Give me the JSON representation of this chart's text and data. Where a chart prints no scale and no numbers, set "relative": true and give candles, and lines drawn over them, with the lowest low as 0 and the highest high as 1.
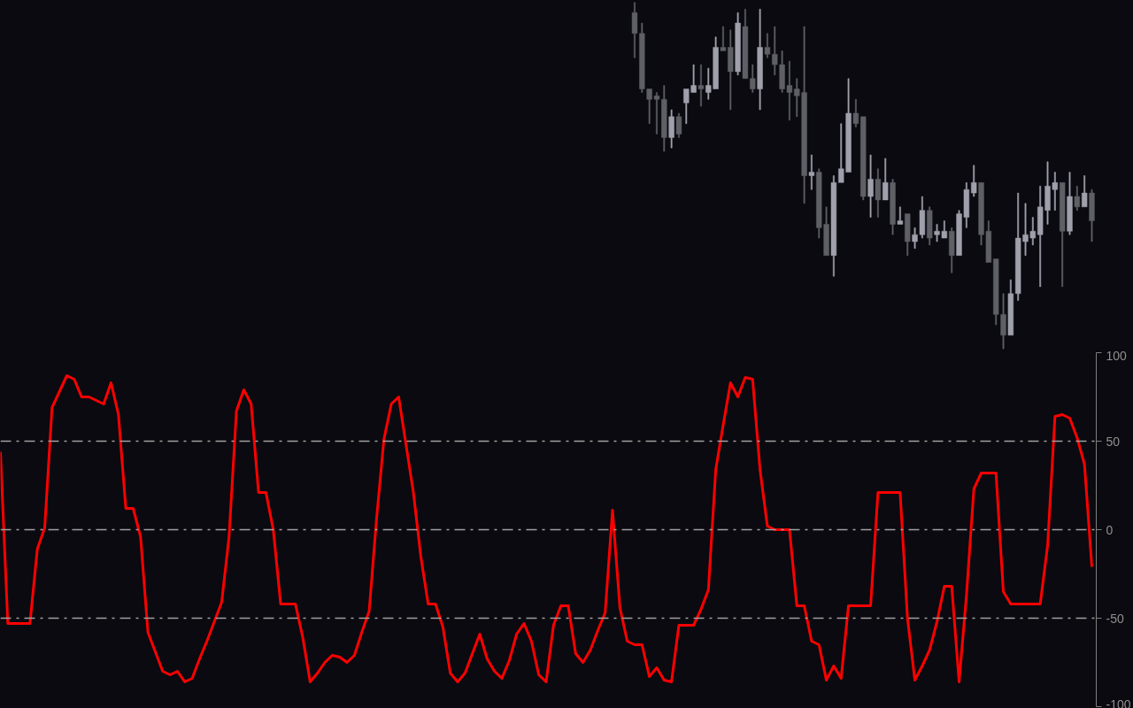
{
  "chart_data": [
    {
      "type": "candlestick",
      "relative": true,
      "tick_labels": false,
      "categories": [
        null,
        null,
        null,
        null,
        null,
        null,
        null,
        null,
        null,
        null,
        null,
        null,
        null,
        null,
        null,
        null,
        null,
        null,
        null,
        null,
        null,
        null,
        null,
        null,
        null,
        null,
        null,
        null,
        null,
        null,
        null,
        null,
        null,
        null,
        null,
        null,
        null,
        null,
        null,
        null,
        null,
        null,
        null,
        null,
        null,
        null,
        null,
        null,
        null,
        null,
        null,
        null,
        null,
        null,
        null,
        null,
        null,
        null,
        null,
        null,
        null,
        null,
        null
      ],
      "ohlc": [
        [
          0.97,
          1.0,
          0.84,
          0.91
        ],
        [
          0.91,
          0.94,
          0.74,
          0.75
        ],
        [
          0.75,
          0.75,
          0.65,
          0.72
        ],
        [
          0.73,
          0.74,
          0.62,
          0.72
        ],
        [
          0.72,
          0.76,
          0.57,
          0.61
        ],
        [
          0.61,
          0.69,
          0.58,
          0.67
        ],
        [
          0.67,
          0.68,
          0.61,
          0.62
        ],
        [
          0.71,
          0.75,
          0.65,
          0.75
        ],
        [
          0.74,
          0.82,
          0.74,
          0.76
        ],
        [
          0.76,
          0.82,
          0.7,
          0.75
        ],
        [
          0.74,
          0.81,
          0.72,
          0.76
        ],
        [
          0.75,
          0.9,
          0.75,
          0.87
        ],
        [
          0.87,
          0.93,
          0.86,
          0.86
        ],
        [
          0.87,
          0.92,
          0.69,
          0.8
        ],
        [
          0.8,
          0.97,
          0.79,
          0.94
        ],
        [
          0.93,
          0.98,
          0.78,
          0.78
        ],
        [
          0.78,
          0.82,
          0.74,
          0.75
        ],
        [
          0.75,
          0.98,
          0.69,
          0.87
        ],
        [
          0.87,
          0.91,
          0.84,
          0.85
        ],
        [
          0.85,
          0.93,
          0.79,
          0.82
        ],
        [
          0.82,
          0.86,
          0.74,
          0.75
        ],
        [
          0.76,
          0.83,
          0.66,
          0.74
        ],
        [
          0.75,
          0.78,
          0.67,
          0.73
        ],
        [
          0.74,
          0.93,
          0.42,
          0.5
        ],
        [
          0.5,
          0.56,
          0.46,
          0.51
        ],
        [
          0.51,
          0.52,
          0.32,
          0.35
        ],
        [
          0.36,
          0.41,
          0.27,
          0.27
        ],
        [
          0.27,
          0.5,
          0.21,
          0.48
        ],
        [
          0.48,
          0.65,
          0.48,
          0.52
        ],
        [
          0.51,
          0.78,
          0.51,
          0.68
        ],
        [
          0.68,
          0.72,
          0.64,
          0.65
        ],
        [
          0.67,
          0.67,
          0.43,
          0.44
        ],
        [
          0.44,
          0.56,
          0.38,
          0.49
        ],
        [
          0.49,
          0.52,
          0.38,
          0.43
        ],
        [
          0.43,
          0.55,
          0.43,
          0.48
        ],
        [
          0.48,
          0.49,
          0.33,
          0.36
        ],
        [
          0.36,
          0.41,
          0.36,
          0.37
        ],
        [
          0.39,
          0.39,
          0.27,
          0.31
        ],
        [
          0.31,
          0.35,
          0.29,
          0.33
        ],
        [
          0.33,
          0.44,
          0.32,
          0.4
        ],
        [
          0.4,
          0.41,
          0.3,
          0.32
        ],
        [
          0.33,
          0.36,
          0.31,
          0.34
        ],
        [
          0.32,
          0.37,
          0.32,
          0.34
        ],
        [
          0.34,
          0.35,
          0.22,
          0.27
        ],
        [
          0.27,
          0.4,
          0.27,
          0.39
        ],
        [
          0.38,
          0.48,
          0.35,
          0.46
        ],
        [
          0.45,
          0.53,
          0.44,
          0.48
        ],
        [
          0.48,
          0.48,
          0.3,
          0.33
        ],
        [
          0.34,
          0.37,
          0.25,
          0.25
        ],
        [
          0.26,
          0.26,
          0.07,
          0.1
        ],
        [
          0.1,
          0.16,
          0.0,
          0.04
        ],
        [
          0.04,
          0.2,
          0.04,
          0.16
        ],
        [
          0.16,
          0.45,
          0.14,
          0.32
        ],
        [
          0.31,
          0.42,
          0.27,
          0.33
        ],
        [
          0.32,
          0.38,
          0.3,
          0.34
        ],
        [
          0.33,
          0.47,
          0.18,
          0.41
        ],
        [
          0.4,
          0.54,
          0.36,
          0.47
        ],
        [
          0.46,
          0.51,
          0.4,
          0.48
        ],
        [
          0.48,
          0.48,
          0.18,
          0.34
        ],
        [
          0.34,
          0.51,
          0.33,
          0.44
        ],
        [
          0.44,
          0.47,
          0.4,
          0.41
        ],
        [
          0.41,
          0.5,
          0.41,
          0.45
        ],
        [
          0.45,
          0.46,
          0.31,
          0.37
        ]
      ],
      "colors": [
        "#5f5f66",
        "#5f5f66",
        "#5f5f66",
        "#5f5f66",
        "#5f5f66",
        "#a0a0ac",
        "#5f5f66",
        "#a0a0ac",
        "#a0a0ac",
        "#5f5f66",
        "#a0a0ac",
        "#a0a0ac",
        "#5f5f66",
        "#5f5f66",
        "#a0a0ac",
        "#5f5f66",
        "#5f5f66",
        "#a0a0ac",
        "#5f5f66",
        "#5f5f66",
        "#5f5f66",
        "#5f5f66",
        "#5f5f66",
        "#5f5f66",
        "#a0a0ac",
        "#5f5f66",
        "#5f5f66",
        "#a0a0ac",
        "#a0a0ac",
        "#a0a0ac",
        "#5f5f66",
        "#5f5f66",
        "#a0a0ac",
        "#5f5f66",
        "#a0a0ac",
        "#5f5f66",
        "#a0a0ac",
        "#5f5f66",
        "#a0a0ac",
        "#a0a0ac",
        "#5f5f66",
        "#a0a0ac",
        "#a0a0ac",
        "#5f5f66",
        "#a0a0ac",
        "#a0a0ac",
        "#a0a0ac",
        "#5f5f66",
        "#5f5f66",
        "#5f5f66",
        "#5f5f66",
        "#a0a0ac",
        "#a0a0ac",
        "#a0a0ac",
        "#a0a0ac",
        "#a0a0ac",
        "#a0a0ac",
        "#a0a0ac",
        "#5f5f66",
        "#a0a0ac",
        "#5f5f66",
        "#a0a0ac",
        "#5f5f66"
      ]
    },
    {
      "type": "line",
      "tick_labels": "y",
      "ylim": [
        -100,
        100
      ],
      "yticks": [
        100,
        50,
        0,
        -50,
        -100
      ],
      "categories": [
        null,
        null,
        null,
        null,
        null,
        null,
        null,
        null,
        null,
        null,
        null,
        null,
        null,
        null,
        null,
        null,
        null,
        null,
        null,
        null,
        null,
        null,
        null,
        null,
        null,
        null,
        null,
        null,
        null,
        null,
        null,
        null,
        null,
        null,
        null,
        null,
        null,
        null,
        null,
        null,
        null,
        null,
        null,
        null,
        null,
        null,
        null,
        null,
        null,
        null,
        null,
        null,
        null,
        null,
        null,
        null,
        null,
        null,
        null,
        null,
        null,
        null,
        null,
        null,
        null,
        null,
        null,
        null,
        null,
        null,
        null,
        null,
        null,
        null,
        null,
        null,
        null,
        null,
        null,
        null,
        null,
        null,
        null,
        null,
        null,
        null,
        null,
        null,
        null,
        null,
        null,
        null,
        null,
        null,
        null,
        null,
        null,
        null,
        null,
        null,
        null,
        null,
        null,
        null,
        null,
        null,
        null,
        null,
        null,
        null,
        null,
        null,
        null,
        null,
        null,
        null,
        null,
        null,
        null,
        null,
        null,
        null,
        null,
        null,
        null,
        null,
        null,
        null,
        null,
        null,
        null,
        null,
        null,
        null,
        null,
        null,
        null,
        null,
        null,
        null,
        null,
        null,
        null,
        null,
        null,
        null,
        null,
        null,
        null
      ],
      "ref_lines": [
        {
          "axis": "y",
          "value": 50,
          "color": "#a0a0a0",
          "line_style": "dashdot"
        },
        {
          "axis": "y",
          "value": 0,
          "color": "#a0a0a0",
          "line_style": "dashdot"
        },
        {
          "axis": "y",
          "value": -50,
          "color": "#a0a0a0",
          "line_style": "dashdot"
        }
      ],
      "series": [
        {
          "color": "#ff0000",
          "values": [
            44,
            -53,
            -53,
            -53,
            -53,
            -11,
            1,
            69,
            78,
            87,
            85,
            75,
            75,
            73,
            71,
            83,
            65,
            12,
            12,
            -4,
            -58,
            -69,
            -80,
            -82,
            -80,
            -86,
            -84,
            -73,
            -63,
            -52,
            -41,
            -4,
            67,
            79,
            71,
            21,
            21,
            0,
            -42,
            -42,
            -42,
            -61,
            -86,
            -81,
            -75,
            -71,
            -72,
            -75,
            -71,
            -58,
            -46,
            6,
            51,
            71,
            75,
            48,
            21,
            -15,
            -42,
            -42,
            -55,
            -81,
            -86,
            -81,
            -70,
            -59,
            -73,
            -80,
            -84,
            -74,
            -59,
            -53,
            -63,
            -82,
            -86,
            -54,
            -43,
            -43,
            -70,
            -75,
            -68,
            -57,
            -47,
            11,
            -44,
            -63,
            -65,
            -65,
            -83,
            -78,
            -85,
            -86,
            -54,
            -54,
            -54,
            -45,
            -34,
            34,
            59,
            83,
            75,
            86,
            85,
            34,
            2,
            0,
            0,
            0,
            -43,
            -43,
            -63,
            -65,
            -85,
            -77,
            -84,
            -43,
            -43,
            -43,
            -43,
            21,
            21,
            21,
            21,
            -50,
            -85,
            -77,
            -68,
            -52,
            -32,
            -32,
            -86,
            -37,
            23,
            32,
            32,
            32,
            -35,
            -42,
            -42,
            -42,
            -42,
            -42,
            -9,
            64,
            65,
            63,
            52,
            37,
            -21
          ]
        }
      ]
    }
  ]
}
